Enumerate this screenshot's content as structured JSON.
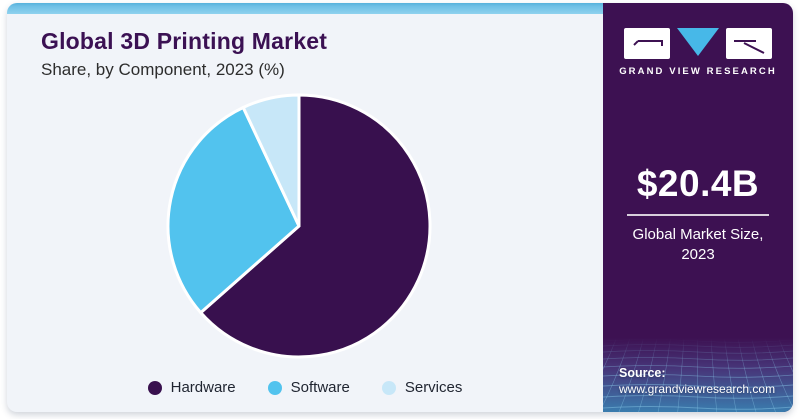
{
  "header": {
    "title": "Global 3D Printing Market",
    "subtitle": "Share, by Component, 2023 (%)"
  },
  "brand": {
    "name": "GRAND VIEW RESEARCH"
  },
  "sidebar": {
    "market_size": "$20.4B",
    "market_size_label": "Global Market Size, 2023",
    "source_label": "Source:",
    "source_url": "www.grandviewresearch.com"
  },
  "chart_data": {
    "type": "pie",
    "title": "Global 3D Printing Market",
    "subtitle": "Share, by Component, 2023 (%)",
    "unit": "%",
    "direction": "clockwise",
    "start_angle_deg": 0,
    "legend_position": "bottom",
    "series": [
      {
        "name": "Hardware",
        "value": 63.5,
        "color": "#38104e"
      },
      {
        "name": "Software",
        "value": 29.5,
        "color": "#52c3ee"
      },
      {
        "name": "Services",
        "value": 7.0,
        "color": "#c7e7f8"
      }
    ]
  },
  "colors": {
    "card_bg": "#f1f4f9",
    "top_strip": "#7cc6e8",
    "sidebar_bg": "#3d1152",
    "title_text": "#3b1153",
    "subtitle_text": "#2d2d2d",
    "legend_text": "#1f2430",
    "logo_triangle": "#47b8e8",
    "slice_gap": "#ffffff",
    "mesh_teal": "#3a7cae"
  }
}
